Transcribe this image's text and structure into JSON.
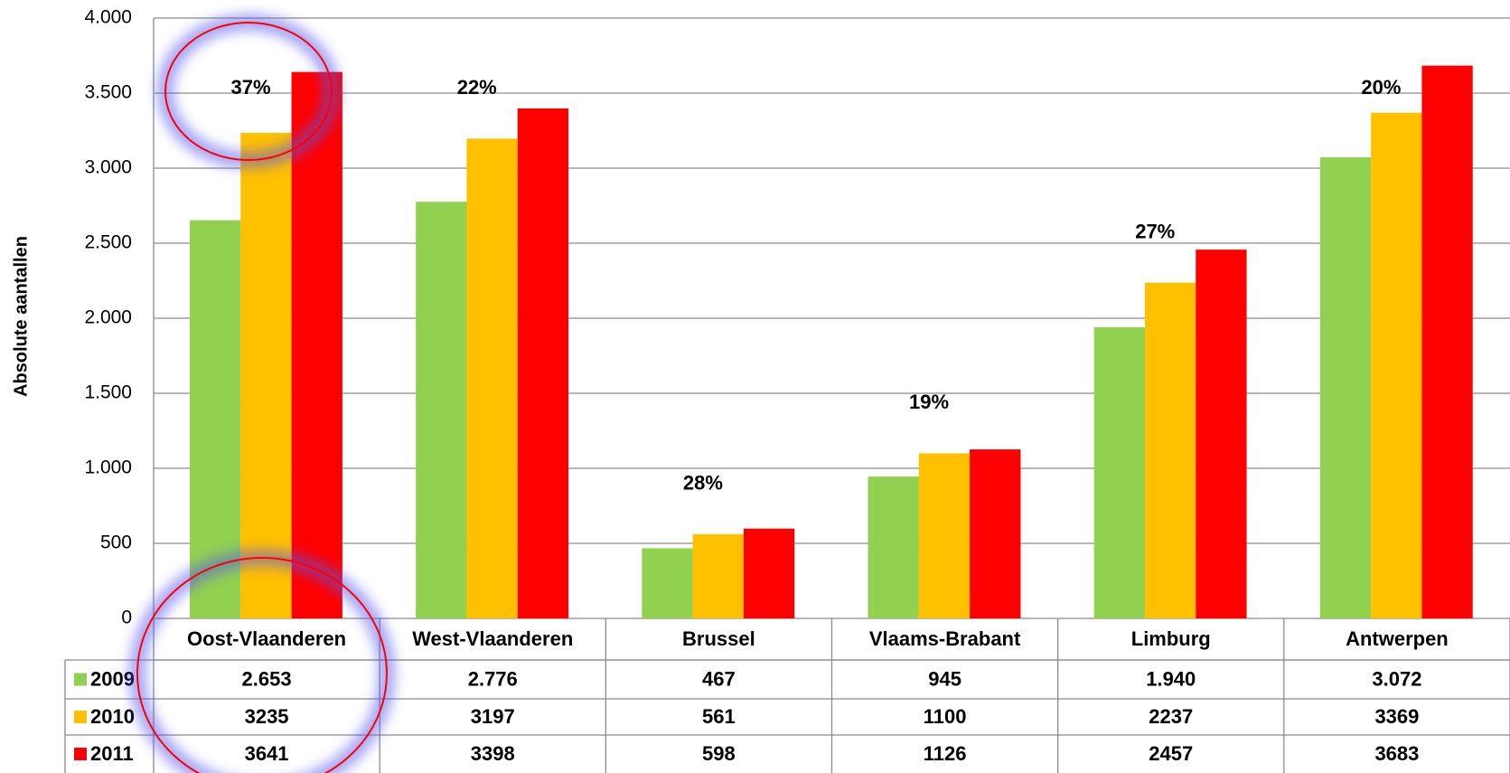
{
  "chart_data": {
    "type": "bar",
    "y_axis_label": "Absolute aantallen",
    "categories": [
      "Oost-Vlaanderen",
      "West-Vlaanderen",
      "Brussel",
      "Vlaams-Brabant",
      "Limburg",
      "Antwerpen"
    ],
    "series": [
      {
        "name": "2009",
        "color": "#92d050",
        "values": [
          2653,
          2776,
          467,
          945,
          1940,
          3072
        ],
        "value_labels": [
          "2.653",
          "2.776",
          "467",
          "945",
          "1.940",
          "3.072"
        ]
      },
      {
        "name": "2010",
        "color": "#ffc000",
        "values": [
          3235,
          3197,
          561,
          1100,
          2237,
          3369
        ]
      },
      {
        "name": "2011",
        "color": "#ff0000",
        "values": [
          3641,
          3398,
          598,
          1126,
          2457,
          3683
        ]
      }
    ],
    "annotations": [
      "37%",
      "22%",
      "28%",
      "19%",
      "27%",
      "20%"
    ],
    "ylim": [
      0,
      4000
    ],
    "yticks": [
      0,
      500,
      {
        "value": 1000,
        "label": "1.000"
      },
      {
        "value": 1500,
        "label": "1.500"
      },
      {
        "value": 2000,
        "label": "2.000"
      },
      {
        "value": 2500,
        "label": "2.500"
      },
      {
        "value": 3000,
        "label": "3.000"
      },
      {
        "value": 3500,
        "label": "3.500"
      },
      {
        "value": 4000,
        "label": "4.000"
      }
    ],
    "grid": true
  }
}
